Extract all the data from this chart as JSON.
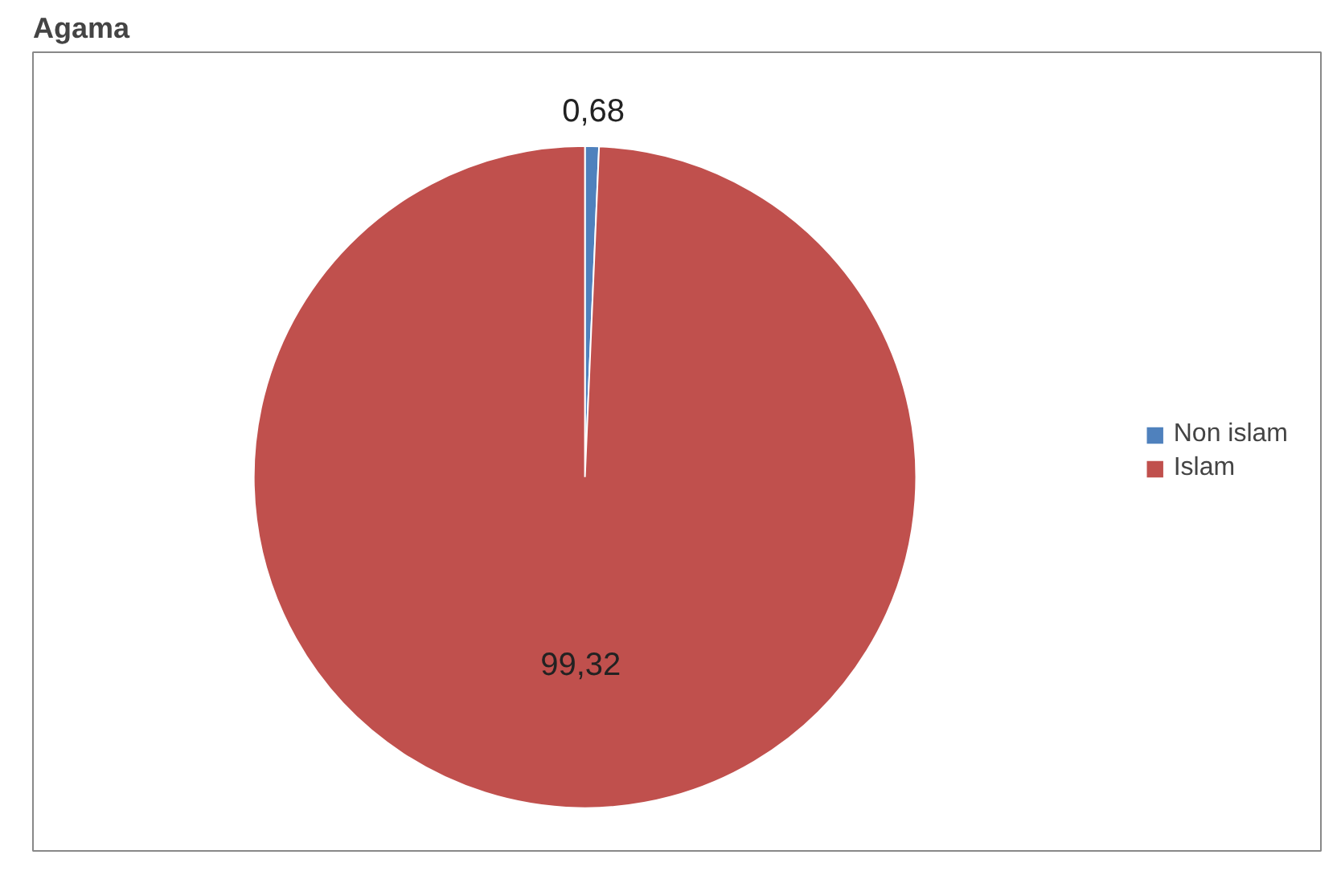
{
  "chart_data": {
    "type": "pie",
    "title": "Agama",
    "categories": [
      "Non islam",
      "Islam"
    ],
    "values": [
      0.68,
      99.32
    ],
    "colors": [
      "#4f81bd",
      "#c0504d"
    ],
    "value_labels": [
      "0,68",
      "99,32"
    ],
    "legend": "right"
  }
}
